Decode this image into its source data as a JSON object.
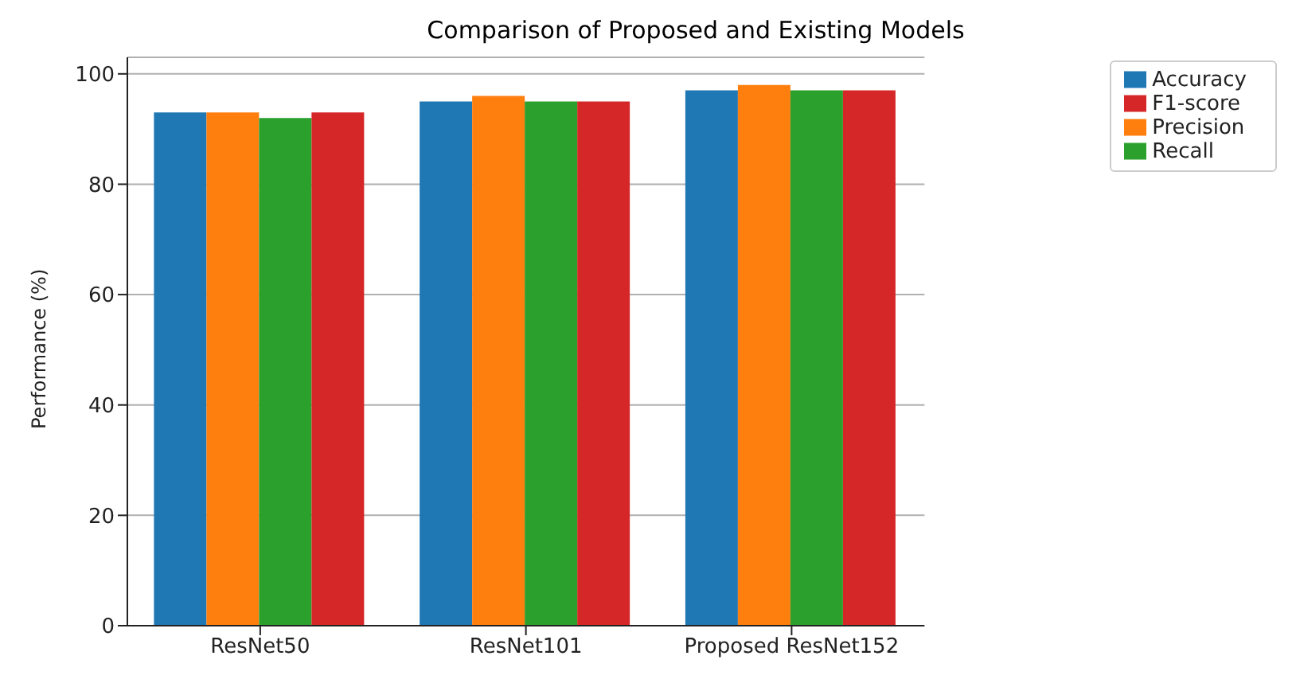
{
  "chart_data": {
    "type": "bar",
    "title": "Comparison of Proposed and Existing Models",
    "ylabel": "Performance (%)",
    "categories": [
      "ResNet50",
      "ResNet101",
      "Proposed ResNet152"
    ],
    "series": [
      {
        "name": "Accuracy",
        "color": "#1f77b4",
        "values": [
          93,
          95,
          97
        ]
      },
      {
        "name": "Precision",
        "color": "#ff7f0e",
        "values": [
          93,
          96,
          98
        ]
      },
      {
        "name": "Recall",
        "color": "#2ca02c",
        "values": [
          92,
          95,
          97
        ]
      },
      {
        "name": "F1-score",
        "color": "#d62728",
        "values": [
          93,
          95,
          97
        ]
      }
    ],
    "ylim": [
      0,
      103
    ],
    "yticks": [
      0,
      20,
      40,
      60,
      80,
      100
    ],
    "grid": "y",
    "legend": "top right"
  }
}
